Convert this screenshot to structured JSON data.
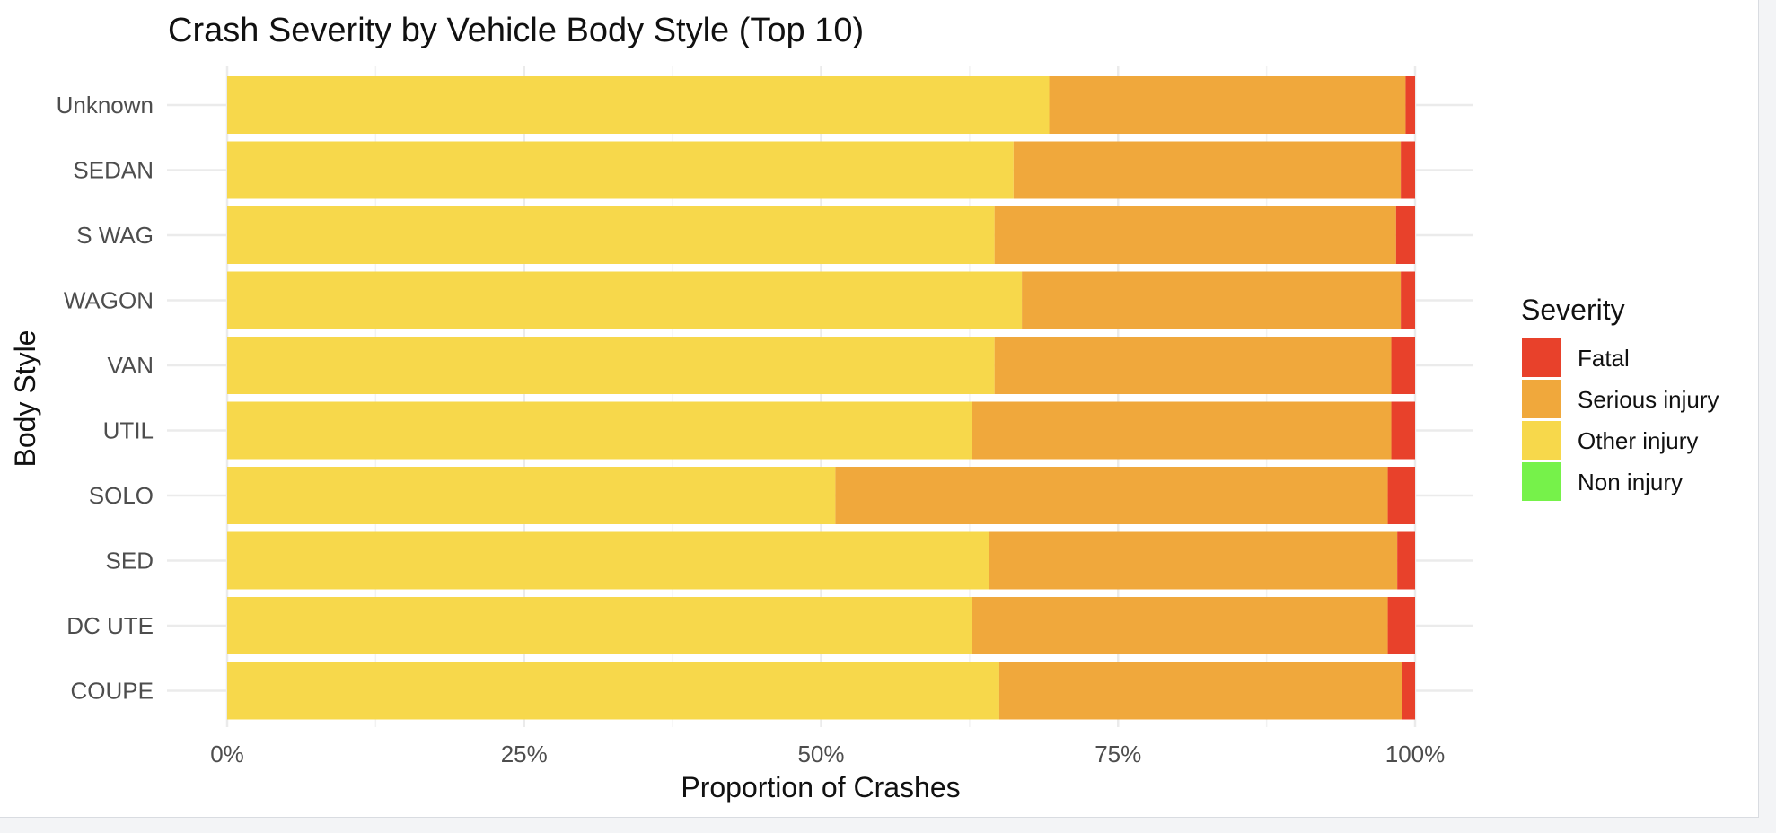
{
  "chart_data": {
    "type": "bar",
    "orientation": "horizontal",
    "stacked": "proportion",
    "title": "Crash Severity by Vehicle Body Style (Top 10)",
    "xlabel": "Proportion of Crashes",
    "ylabel": "Body Style",
    "xlim": [
      0,
      1
    ],
    "x_ticks": [
      "0%",
      "25%",
      "50%",
      "75%",
      "100%"
    ],
    "grid": true,
    "legend_title": "Severity",
    "legend_position": "right",
    "categories": [
      "Unknown",
      "SEDAN",
      "S WAG",
      "WAGON",
      "VAN",
      "UTIL",
      "SOLO",
      "SED",
      "DC UTE",
      "COUPE"
    ],
    "series": [
      {
        "name": "Other injury",
        "color": "#F7D84B",
        "values": [
          0.692,
          0.662,
          0.646,
          0.669,
          0.646,
          0.627,
          0.512,
          0.641,
          0.627,
          0.65
        ]
      },
      {
        "name": "Serious injury",
        "color": "#F0A83C",
        "values": [
          0.3,
          0.326,
          0.338,
          0.319,
          0.334,
          0.353,
          0.465,
          0.344,
          0.35,
          0.339
        ]
      },
      {
        "name": "Fatal",
        "color": "#E8412B",
        "values": [
          0.008,
          0.012,
          0.016,
          0.012,
          0.02,
          0.02,
          0.023,
          0.015,
          0.023,
          0.011
        ]
      },
      {
        "name": "Non injury",
        "color": "#76F24A",
        "values": [
          0,
          0,
          0,
          0,
          0,
          0,
          0,
          0,
          0,
          0
        ]
      }
    ],
    "legend_order": [
      "Fatal",
      "Serious injury",
      "Other injury",
      "Non injury"
    ]
  }
}
